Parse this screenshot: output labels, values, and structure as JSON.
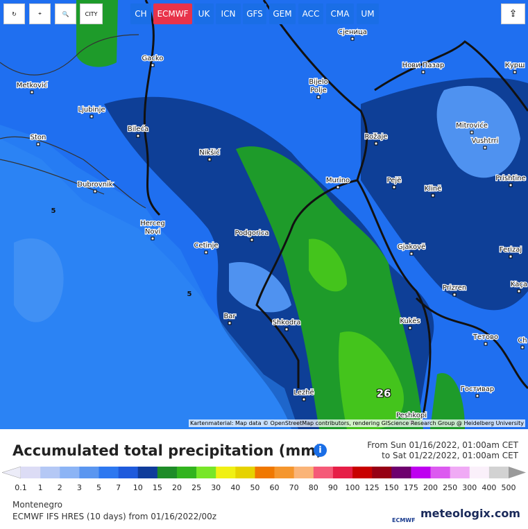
{
  "toolbar": {
    "city_button": "CITY",
    "models": [
      "CH",
      "ECMWF",
      "UK",
      "ICN",
      "GFS",
      "GEM",
      "ACC",
      "CMA",
      "UM"
    ],
    "active_model": "ECMWF"
  },
  "map": {
    "cities": [
      [
        "Сјеница"
      ],
      [
        "Gacko"
      ],
      [
        "Нови Пазар"
      ],
      [
        "Курш"
      ],
      [
        "Metković"
      ],
      [
        "Bijelo",
        "Polje"
      ],
      [
        "Ljubinje"
      ],
      [
        "Mitroviće"
      ],
      [
        "Bileća"
      ],
      [
        "Rožaje"
      ],
      [
        "Ston"
      ],
      [
        "Vushtrri"
      ],
      [
        "Nikšić"
      ],
      [
        "Murino"
      ],
      [
        "Pejë"
      ],
      [
        "Dubrovnik"
      ],
      [
        "Klinë"
      ],
      [
        "Prishtine"
      ],
      [
        "Herceg",
        "Novi"
      ],
      [
        "Podgorica"
      ],
      [
        "Cetinje"
      ],
      [
        "Gjakovë"
      ],
      [
        "Ferizaj"
      ],
      [
        "Prizren"
      ],
      [
        "Kaça"
      ],
      [
        "Bar"
      ],
      [
        "Kukës"
      ],
      [
        "Shkodra"
      ],
      [
        "Тетово"
      ],
      [
        "Ch"
      ],
      [
        "Lezhë"
      ],
      [
        "Гостивар"
      ],
      [
        "Peshkopi"
      ]
    ],
    "value_labels": [
      "5",
      "5",
      "26"
    ],
    "attribution": "Kartenmaterial: Map data © OpenStreetMap contributors, rendering GIScience Research Group @ Heidelberg University"
  },
  "legend": {
    "title": "Accumulated total precipitation (mm)",
    "from": "From Sun 01/16/2022, 01:00am CET",
    "to": "to Sat 01/22/2022, 01:00am CET",
    "labels": [
      "0.1",
      "1",
      "2",
      "3",
      "5",
      "7",
      "10",
      "15",
      "20",
      "25",
      "30",
      "40",
      "50",
      "60",
      "70",
      "80",
      "90",
      "100",
      "125",
      "150",
      "175",
      "200",
      "250",
      "300",
      "400",
      "500"
    ],
    "colors": [
      "#dcdcf5",
      "#b4c8f5",
      "#8cb4f5",
      "#5a96f0",
      "#2d78f0",
      "#1e5adc",
      "#0f3c9b",
      "#1e8c28",
      "#32b41e",
      "#78e628",
      "#f0f014",
      "#e6d200",
      "#f07800",
      "#f5962d",
      "#fab478",
      "#f55a78",
      "#e61e46",
      "#c80000",
      "#960014",
      "#6e006e",
      "#be00f0",
      "#dc5af0",
      "#f0aaf5",
      "#faf0fa",
      "#d2d2d2"
    ],
    "low_color": "#ececf8",
    "high_color": "#9a9a9a"
  },
  "footer": {
    "region": "Montenegro",
    "model_run": "ECMWF IFS HRES (10 days) from 01/16/2022/00z",
    "logo_small": "ECMWF",
    "brand": "meteologix.com"
  }
}
